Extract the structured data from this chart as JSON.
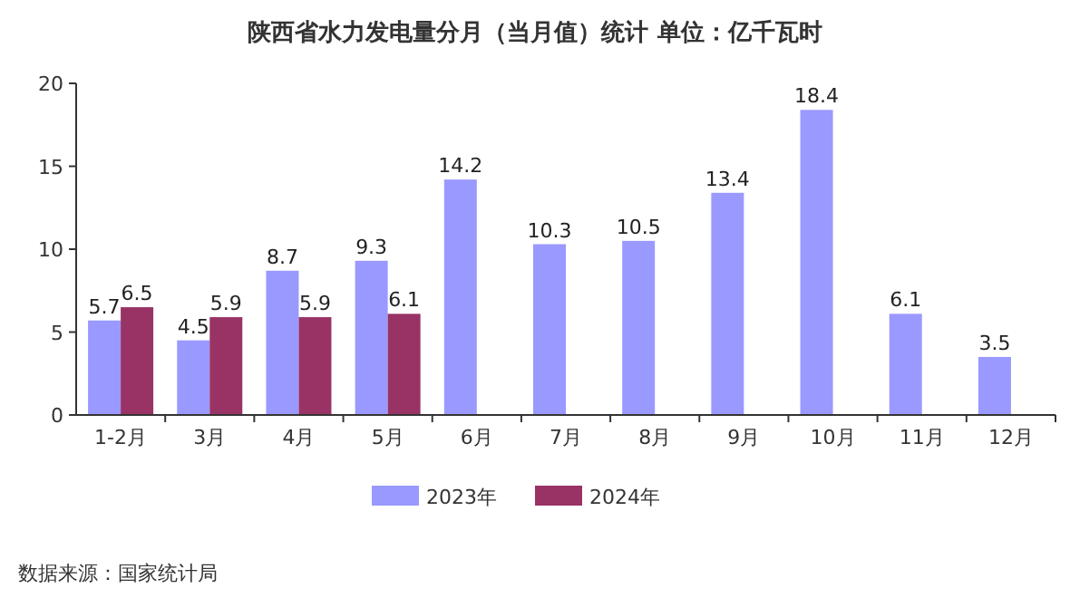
{
  "chart_data": {
    "type": "bar",
    "title": "陕西省水力发电量分月（当月值）统计 单位：亿千瓦时",
    "categories": [
      "1-2月",
      "3月",
      "4月",
      "5月",
      "6月",
      "7月",
      "8月",
      "9月",
      "10月",
      "11月",
      "12月"
    ],
    "series": [
      {
        "name": "2023年",
        "color": "#9999ff",
        "values": [
          5.7,
          4.5,
          8.7,
          9.3,
          14.2,
          10.3,
          10.5,
          13.4,
          18.4,
          6.1,
          3.5
        ]
      },
      {
        "name": "2024年",
        "color": "#993366",
        "values": [
          6.5,
          5.9,
          5.9,
          6.1,
          null,
          null,
          null,
          null,
          null,
          null,
          null
        ]
      }
    ],
    "ylim": [
      0,
      20
    ],
    "yticks": [
      0,
      5,
      10,
      15,
      20
    ],
    "grid": false,
    "legend": "bottom",
    "data_labels": true,
    "annotations": [
      "数据来源：国家统计局"
    ]
  }
}
